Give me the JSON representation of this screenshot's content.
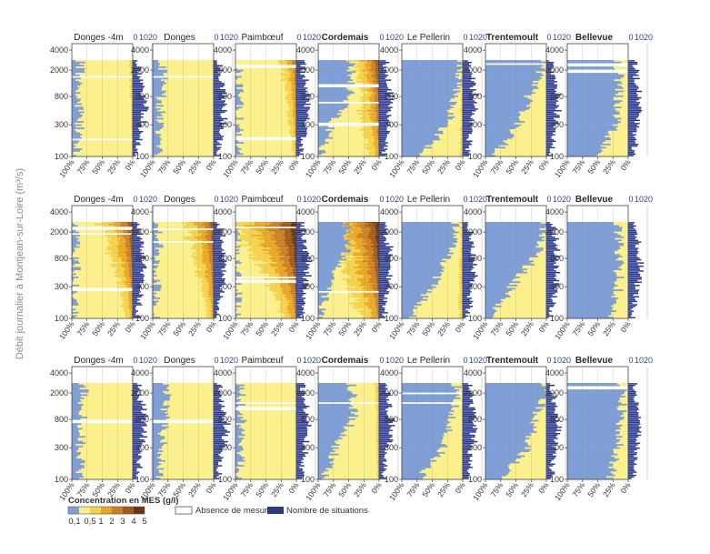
{
  "figure": {
    "y_axis_label": "Débit journalier à Montjean-sur-Loire (m³/s)",
    "stations": [
      {
        "name": "Donges -4m",
        "bold": false
      },
      {
        "name": "Donges",
        "bold": false
      },
      {
        "name": "Paimbœuf",
        "bold": false
      },
      {
        "name": "Cordemais",
        "bold": true
      },
      {
        "name": "Le Pellerin",
        "bold": false
      },
      {
        "name": "Trentemoult",
        "bold": true
      },
      {
        "name": "Bellevue",
        "bold": true
      }
    ],
    "y_ticks": [
      "4000",
      "2000",
      "800",
      "300",
      "100"
    ],
    "x_ticks": [
      "100%",
      "75%",
      "50%",
      "25%",
      "0%"
    ],
    "count_ticks": [
      "0",
      "10",
      "20"
    ],
    "legend": {
      "concentration_title": "Concentration en MES (g/l)",
      "class_labels": [
        "0,1",
        "0,5",
        "1",
        "2",
        "3",
        "4",
        "5"
      ],
      "no_measure_label": "Absence de mesure",
      "count_label": "Nombre de situations"
    }
  },
  "chart_data": {
    "type": "area",
    "description_rows": [
      "row-1",
      "row-2",
      "row-3"
    ],
    "y_axis": {
      "scale": "log",
      "range": [
        100,
        5000
      ],
      "label": "Débit journalier à Montjean-sur-Loire (m³/s)"
    },
    "x_axis": {
      "range": [
        "100%",
        "0%"
      ],
      "reversed": true
    },
    "count_axis": {
      "range": [
        0,
        20
      ]
    },
    "colors": {
      "blue": "#7f9fd6",
      "classes": [
        "#fbf08c",
        "#f4d24c",
        "#e9a623",
        "#cd7d22",
        "#9e5a1a",
        "#6b3412"
      ],
      "count_bar": "#2b3990"
    },
    "rows": [
      {
        "stations": [
          {
            "name": "Donges -4m",
            "blue": [
              0.15,
              0.15,
              0.12,
              0.1
            ],
            "darkness": 0.25,
            "intensity": 0.35,
            "gaps": [
              0.17,
              0.83
            ]
          },
          {
            "name": "Donges",
            "blue": [
              0.18,
              0.15,
              0.12,
              0.1
            ],
            "darkness": 0.15,
            "intensity": 0.3,
            "gaps": [
              0.83
            ]
          },
          {
            "name": "Paimbœuf",
            "blue": [
              0.05,
              0.05,
              0.05,
              0.05
            ],
            "darkness": 0.55,
            "intensity": 0.45,
            "gaps": [
              0.18,
              0.94
            ]
          },
          {
            "name": "Cordemais",
            "blue": [
              0.55,
              0.55,
              0.25,
              0.05
            ],
            "darkness": 0.75,
            "intensity": 0.85,
            "gaps": [
              0.33,
              0.56,
              0.74
            ]
          },
          {
            "name": "Le Pellerin",
            "blue": [
              1.0,
              0.92,
              0.75,
              0.35
            ],
            "darkness": 0.35,
            "intensity": 0.95,
            "gaps": []
          },
          {
            "name": "Trentemoult",
            "blue": [
              1.0,
              0.75,
              0.55,
              0.15
            ],
            "darkness": 0.05,
            "intensity": 0.55,
            "gaps": [
              0.97
            ]
          },
          {
            "name": "Bellevue",
            "blue": [
              0.85,
              0.85,
              0.8,
              0.55
            ],
            "darkness": 0.05,
            "intensity": 0.25,
            "gaps": [
              0.96,
              0.89
            ]
          }
        ]
      },
      {
        "stations": [
          {
            "name": "Donges -4m",
            "blue": [
              0.1,
              0.08,
              0.05,
              0.03
            ],
            "darkness": 0.75,
            "intensity": 0.55,
            "gaps": [
              0.3,
              0.88,
              0.94
            ]
          },
          {
            "name": "Donges",
            "blue": [
              0.12,
              0.1,
              0.06,
              0.04
            ],
            "darkness": 0.7,
            "intensity": 0.55,
            "gaps": [
              0.8,
              0.93
            ]
          },
          {
            "name": "Paimbœuf",
            "blue": [
              0.03,
              0.03,
              0.03,
              0.03
            ],
            "darkness": 0.95,
            "intensity": 0.7,
            "gaps": [
              0.38,
              0.42,
              0.95
            ]
          },
          {
            "name": "Cordemais",
            "blue": [
              0.5,
              0.45,
              0.15,
              0.02
            ],
            "darkness": 0.95,
            "intensity": 0.95,
            "gaps": [
              0.27
            ]
          },
          {
            "name": "Le Pellerin",
            "blue": [
              0.9,
              0.8,
              0.5,
              0.15
            ],
            "darkness": 0.4,
            "intensity": 0.8,
            "gaps": []
          },
          {
            "name": "Trentemoult",
            "blue": [
              1.0,
              0.85,
              0.45,
              0.1
            ],
            "darkness": 0.05,
            "intensity": 0.55,
            "gaps": []
          },
          {
            "name": "Bellevue",
            "blue": [
              0.85,
              0.85,
              0.85,
              0.7
            ],
            "darkness": 0.02,
            "intensity": 0.2,
            "gaps": []
          }
        ]
      },
      {
        "stations": [
          {
            "name": "Donges -4m",
            "blue": [
              0.2,
              0.18,
              0.15,
              0.12
            ],
            "darkness": 0.1,
            "intensity": 0.3,
            "gaps": [
              0.6
            ]
          },
          {
            "name": "Donges",
            "blue": [
              0.25,
              0.2,
              0.15,
              0.12
            ],
            "darkness": 0.08,
            "intensity": 0.3,
            "gaps": [
              0.6
            ]
          },
          {
            "name": "Paimbœuf",
            "blue": [
              0.1,
              0.1,
              0.1,
              0.08
            ],
            "darkness": 0.15,
            "intensity": 0.35,
            "gaps": [
              0.74,
              0.8
            ]
          },
          {
            "name": "Cordemais",
            "blue": [
              0.55,
              0.6,
              0.3,
              0.1
            ],
            "darkness": 0.3,
            "intensity": 0.65,
            "gaps": [
              0.8
            ]
          },
          {
            "name": "Le Pellerin",
            "blue": [
              0.9,
              0.85,
              0.7,
              0.3
            ],
            "darkness": 0.2,
            "intensity": 0.85,
            "gaps": [
              0.8,
              0.9
            ]
          },
          {
            "name": "Trentemoult",
            "blue": [
              1.0,
              0.85,
              0.7,
              0.25
            ],
            "darkness": 0.02,
            "intensity": 0.4,
            "gaps": []
          },
          {
            "name": "Bellevue",
            "blue": [
              0.9,
              0.9,
              0.85,
              0.7
            ],
            "darkness": 0.02,
            "intensity": 0.2,
            "gaps": [
              0.96
            ]
          }
        ]
      }
    ]
  }
}
